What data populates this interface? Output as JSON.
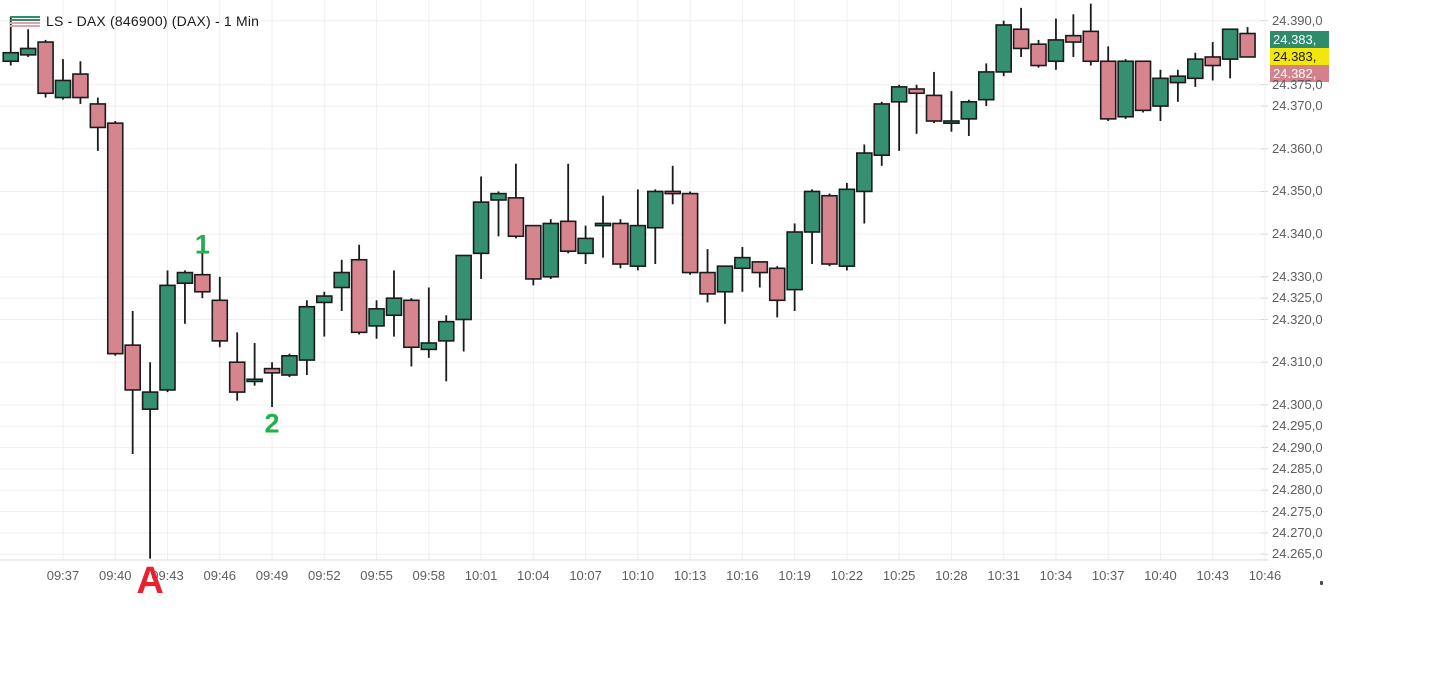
{
  "header": {
    "title": "LS - DAX (846900) (DAX) - 1 Min"
  },
  "legend": {
    "up_line_color": "#2f8c6c",
    "down_line_color": "#e2a3ac"
  },
  "price_badges": [
    {
      "name": "ask",
      "label": "24.383,",
      "bg": "#2e8c6c",
      "fg": "#ffffff"
    },
    {
      "name": "last",
      "label": "24.383,",
      "bg": "#f2e60b",
      "fg": "#1a1a1a"
    },
    {
      "name": "bid",
      "label": "24.382,",
      "bg": "#d5818c",
      "fg": "#ffffff"
    }
  ],
  "annotations": [
    {
      "text": "1",
      "time": "09:45",
      "price": 24337.5,
      "color": "#23ad4b",
      "size": 27
    },
    {
      "text": "2",
      "time": "09:49",
      "price": 24295.5,
      "color": "#23ad4b",
      "size": 27
    },
    {
      "text": "A",
      "time": "09:42",
      "price": null,
      "color": "#e8212e",
      "size": 38
    }
  ],
  "chart_data": {
    "type": "candlestick",
    "title": "LS - DAX (846900) (DAX) - 1 Min",
    "interval": "1 Min",
    "grid": true,
    "up_color": "#358f71",
    "down_color": "#d6848e",
    "wick_color": "#1b1b1b",
    "x_range": [
      "09:33",
      "10:47"
    ],
    "y_range": [
      24262,
      24395
    ],
    "x_ticks": [
      "09:37",
      "09:40",
      "09:43",
      "09:46",
      "09:49",
      "09:52",
      "09:55",
      "09:58",
      "10:01",
      "10:04",
      "10:07",
      "10:10",
      "10:13",
      "10:16",
      "10:19",
      "10:22",
      "10:25",
      "10:28",
      "10:31",
      "10:34",
      "10:37",
      "10:40",
      "10:43",
      "10:46"
    ],
    "y_ticks": [
      {
        "label": "24.390,0",
        "value": 24390
      },
      {
        "label": "24.375,0",
        "value": 24375
      },
      {
        "label": "24.370,0",
        "value": 24370
      },
      {
        "label": "24.360,0",
        "value": 24360
      },
      {
        "label": "24.350,0",
        "value": 24350
      },
      {
        "label": "24.340,0",
        "value": 24340
      },
      {
        "label": "24.330,0",
        "value": 24330
      },
      {
        "label": "24.325,0",
        "value": 24325
      },
      {
        "label": "24.320,0",
        "value": 24320
      },
      {
        "label": "24.310,0",
        "value": 24310
      },
      {
        "label": "24.300,0",
        "value": 24300
      },
      {
        "label": "24.295,0",
        "value": 24295
      },
      {
        "label": "24.290,0",
        "value": 24290
      },
      {
        "label": "24.285,0",
        "value": 24285
      },
      {
        "label": "24.280,0",
        "value": 24280
      },
      {
        "label": "24.275,0",
        "value": 24275
      },
      {
        "label": "24.270,0",
        "value": 24270
      },
      {
        "label": "24.265,0",
        "value": 24265
      }
    ],
    "candles": [
      {
        "t": "09:34",
        "o": 24380.5,
        "h": 24391.0,
        "l": 24379.5,
        "c": 24382.5
      },
      {
        "t": "09:35",
        "o": 24382.0,
        "h": 24388.0,
        "l": 24381.5,
        "c": 24383.5
      },
      {
        "t": "09:36",
        "o": 24385.0,
        "h": 24385.5,
        "l": 24372.0,
        "c": 24373.0
      },
      {
        "t": "09:37",
        "o": 24372.0,
        "h": 24381.0,
        "l": 24371.5,
        "c": 24376.0
      },
      {
        "t": "09:38",
        "o": 24377.5,
        "h": 24380.5,
        "l": 24370.5,
        "c": 24372.0
      },
      {
        "t": "09:39",
        "o": 24370.5,
        "h": 24372.0,
        "l": 24359.5,
        "c": 24365.0
      },
      {
        "t": "09:40",
        "o": 24366.0,
        "h": 24366.5,
        "l": 24311.5,
        "c": 24312.0
      },
      {
        "t": "09:41",
        "o": 24314.0,
        "h": 24322.0,
        "l": 24288.5,
        "c": 24303.5
      },
      {
        "t": "09:42",
        "o": 24299.0,
        "h": 24310.0,
        "l": 24264.0,
        "c": 24303.0
      },
      {
        "t": "09:43",
        "o": 24303.5,
        "h": 24331.5,
        "l": 24303.0,
        "c": 24328.0
      },
      {
        "t": "09:44",
        "o": 24328.5,
        "h": 24331.5,
        "l": 24319.0,
        "c": 24331.0
      },
      {
        "t": "09:45",
        "o": 24330.5,
        "h": 24336.5,
        "l": 24325.0,
        "c": 24326.5
      },
      {
        "t": "09:46",
        "o": 24324.5,
        "h": 24330.0,
        "l": 24313.5,
        "c": 24315.0
      },
      {
        "t": "09:47",
        "o": 24310.0,
        "h": 24317.0,
        "l": 24301.0,
        "c": 24303.0
      },
      {
        "t": "09:48",
        "o": 24305.5,
        "h": 24314.5,
        "l": 24304.5,
        "c": 24306.0
      },
      {
        "t": "09:49",
        "o": 24308.5,
        "h": 24310.0,
        "l": 24299.5,
        "c": 24307.5
      },
      {
        "t": "09:50",
        "o": 24307.0,
        "h": 24312.0,
        "l": 24306.5,
        "c": 24311.5
      },
      {
        "t": "09:51",
        "o": 24310.5,
        "h": 24324.5,
        "l": 24307.0,
        "c": 24323.0
      },
      {
        "t": "09:52",
        "o": 24324.0,
        "h": 24326.5,
        "l": 24316.0,
        "c": 24325.5
      },
      {
        "t": "09:53",
        "o": 24327.5,
        "h": 24334.0,
        "l": 24322.0,
        "c": 24331.0
      },
      {
        "t": "09:54",
        "o": 24334.0,
        "h": 24337.5,
        "l": 24316.5,
        "c": 24317.0
      },
      {
        "t": "09:55",
        "o": 24318.5,
        "h": 24324.5,
        "l": 24315.5,
        "c": 24322.5
      },
      {
        "t": "09:56",
        "o": 24321.0,
        "h": 24331.5,
        "l": 24316.0,
        "c": 24325.0
      },
      {
        "t": "09:57",
        "o": 24324.5,
        "h": 24325.0,
        "l": 24309.0,
        "c": 24313.5
      },
      {
        "t": "09:58",
        "o": 24313.0,
        "h": 24327.5,
        "l": 24311.0,
        "c": 24314.5
      },
      {
        "t": "09:59",
        "o": 24315.0,
        "h": 24321.0,
        "l": 24305.5,
        "c": 24319.5
      },
      {
        "t": "10:00",
        "o": 24320.0,
        "h": 24335.0,
        "l": 24312.5,
        "c": 24335.0
      },
      {
        "t": "10:01",
        "o": 24335.5,
        "h": 24353.5,
        "l": 24329.5,
        "c": 24347.5
      },
      {
        "t": "10:02",
        "o": 24348.0,
        "h": 24350.0,
        "l": 24339.5,
        "c": 24349.5
      },
      {
        "t": "10:03",
        "o": 24348.5,
        "h": 24356.5,
        "l": 24339.0,
        "c": 24339.5
      },
      {
        "t": "10:04",
        "o": 24342.0,
        "h": 24342.0,
        "l": 24328.0,
        "c": 24329.5
      },
      {
        "t": "10:05",
        "o": 24330.0,
        "h": 24343.5,
        "l": 24329.5,
        "c": 24342.5
      },
      {
        "t": "10:06",
        "o": 24343.0,
        "h": 24356.5,
        "l": 24335.5,
        "c": 24336.0
      },
      {
        "t": "10:07",
        "o": 24335.5,
        "h": 24342.0,
        "l": 24333.0,
        "c": 24339.0
      },
      {
        "t": "10:08",
        "o": 24342.0,
        "h": 24349.0,
        "l": 24334.5,
        "c": 24342.5
      },
      {
        "t": "10:09",
        "o": 24342.5,
        "h": 24343.5,
        "l": 24332.0,
        "c": 24333.0
      },
      {
        "t": "10:10",
        "o": 24332.5,
        "h": 24350.5,
        "l": 24331.5,
        "c": 24342.0
      },
      {
        "t": "10:11",
        "o": 24341.5,
        "h": 24350.5,
        "l": 24333.0,
        "c": 24350.0
      },
      {
        "t": "10:12",
        "o": 24350.0,
        "h": 24356.0,
        "l": 24347.0,
        "c": 24349.5
      },
      {
        "t": "10:13",
        "o": 24349.5,
        "h": 24350.0,
        "l": 24330.5,
        "c": 24331.0
      },
      {
        "t": "10:14",
        "o": 24331.0,
        "h": 24336.5,
        "l": 24324.0,
        "c": 24326.0
      },
      {
        "t": "10:15",
        "o": 24326.5,
        "h": 24332.5,
        "l": 24319.0,
        "c": 24332.5
      },
      {
        "t": "10:16",
        "o": 24332.0,
        "h": 24337.0,
        "l": 24326.5,
        "c": 24334.5
      },
      {
        "t": "10:17",
        "o": 24333.5,
        "h": 24333.5,
        "l": 24327.5,
        "c": 24331.0
      },
      {
        "t": "10:18",
        "o": 24332.0,
        "h": 24332.5,
        "l": 24320.5,
        "c": 24324.5
      },
      {
        "t": "10:19",
        "o": 24327.0,
        "h": 24342.5,
        "l": 24322.0,
        "c": 24340.5
      },
      {
        "t": "10:20",
        "o": 24340.5,
        "h": 24350.5,
        "l": 24333.0,
        "c": 24350.0
      },
      {
        "t": "10:21",
        "o": 24349.0,
        "h": 24349.5,
        "l": 24332.5,
        "c": 24333.0
      },
      {
        "t": "10:22",
        "o": 24332.5,
        "h": 24352.0,
        "l": 24331.5,
        "c": 24350.5
      },
      {
        "t": "10:23",
        "o": 24350.0,
        "h": 24361.0,
        "l": 24342.5,
        "c": 24359.0
      },
      {
        "t": "10:24",
        "o": 24358.5,
        "h": 24371.0,
        "l": 24356.0,
        "c": 24370.5
      },
      {
        "t": "10:25",
        "o": 24371.0,
        "h": 24375.0,
        "l": 24359.5,
        "c": 24374.5
      },
      {
        "t": "10:26",
        "o": 24374.0,
        "h": 24375.0,
        "l": 24363.5,
        "c": 24373.0
      },
      {
        "t": "10:27",
        "o": 24372.5,
        "h": 24378.0,
        "l": 24366.0,
        "c": 24366.5
      },
      {
        "t": "10:28",
        "o": 24366.0,
        "h": 24373.5,
        "l": 24364.0,
        "c": 24366.5
      },
      {
        "t": "10:29",
        "o": 24367.0,
        "h": 24371.5,
        "l": 24363.0,
        "c": 24371.0
      },
      {
        "t": "10:30",
        "o": 24371.5,
        "h": 24380.0,
        "l": 24370.0,
        "c": 24378.0
      },
      {
        "t": "10:31",
        "o": 24378.0,
        "h": 24390.0,
        "l": 24377.0,
        "c": 24389.0
      },
      {
        "t": "10:32",
        "o": 24388.0,
        "h": 24393.0,
        "l": 24381.5,
        "c": 24383.5
      },
      {
        "t": "10:33",
        "o": 24384.5,
        "h": 24385.5,
        "l": 24379.0,
        "c": 24379.5
      },
      {
        "t": "10:34",
        "o": 24380.5,
        "h": 24390.5,
        "l": 24378.5,
        "c": 24385.5
      },
      {
        "t": "10:35",
        "o": 24386.5,
        "h": 24391.5,
        "l": 24381.5,
        "c": 24385.0
      },
      {
        "t": "10:36",
        "o": 24387.5,
        "h": 24394.0,
        "l": 24379.5,
        "c": 24380.5
      },
      {
        "t": "10:37",
        "o": 24380.5,
        "h": 24384.0,
        "l": 24366.5,
        "c": 24367.0
      },
      {
        "t": "10:38",
        "o": 24367.5,
        "h": 24381.0,
        "l": 24367.0,
        "c": 24380.5
      },
      {
        "t": "10:39",
        "o": 24380.5,
        "h": 24380.5,
        "l": 24368.5,
        "c": 24369.0
      },
      {
        "t": "10:40",
        "o": 24370.0,
        "h": 24378.5,
        "l": 24366.5,
        "c": 24376.5
      },
      {
        "t": "10:41",
        "o": 24375.5,
        "h": 24378.5,
        "l": 24371.0,
        "c": 24377.0
      },
      {
        "t": "10:42",
        "o": 24376.5,
        "h": 24382.5,
        "l": 24374.5,
        "c": 24381.0
      },
      {
        "t": "10:43",
        "o": 24381.5,
        "h": 24385.0,
        "l": 24376.0,
        "c": 24379.5
      },
      {
        "t": "10:44",
        "o": 24381.0,
        "h": 24388.0,
        "l": 24376.5,
        "c": 24388.0
      },
      {
        "t": "10:45",
        "o": 24387.0,
        "h": 24388.5,
        "l": 24381.5,
        "c": 24381.5
      }
    ]
  }
}
